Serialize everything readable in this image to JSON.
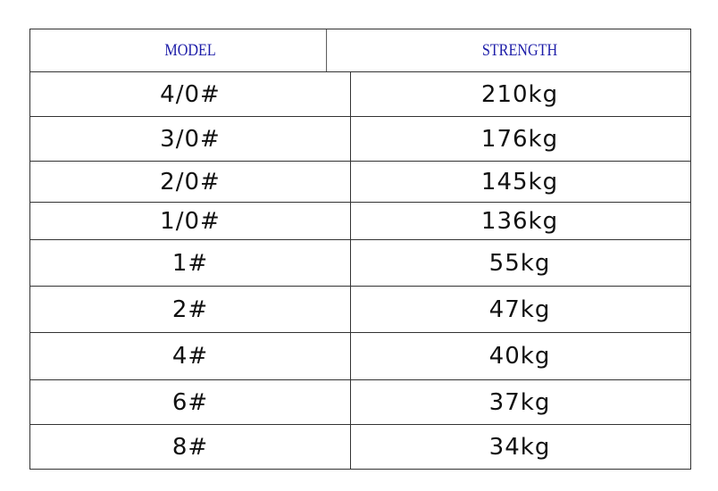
{
  "table": {
    "headers": [
      "MODEL",
      "STRENGTH"
    ],
    "rows": [
      {
        "model": "4/0#",
        "strength": "210kg"
      },
      {
        "model": "3/0#",
        "strength": "176kg"
      },
      {
        "model": "2/0#",
        "strength": "145kg"
      },
      {
        "model": "1/0#",
        "strength": "136kg"
      },
      {
        "model": "1#",
        "strength": "55kg"
      },
      {
        "model": "2#",
        "strength": "47kg"
      },
      {
        "model": "4#",
        "strength": "40kg"
      },
      {
        "model": "6#",
        "strength": "37kg"
      },
      {
        "model": "8#",
        "strength": "34kg"
      }
    ],
    "header_color": "#1c1ca8"
  }
}
